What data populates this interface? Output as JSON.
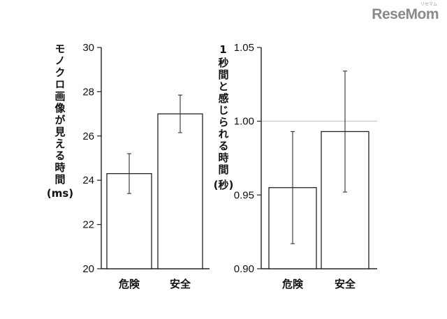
{
  "logo": {
    "text": "ReseMom",
    "mark": "リセマム"
  },
  "chart_data": [
    {
      "type": "bar",
      "categories": [
        "危険",
        "安全"
      ],
      "values": [
        24.3,
        27.0
      ],
      "errors": [
        0.9,
        0.85
      ],
      "ylabel": "モノクロ画像が見える時間",
      "yunit": "(ms)",
      "ylim": [
        20,
        30
      ],
      "yticks": [
        "20",
        "22",
        "24",
        "26",
        "28",
        "30"
      ],
      "ytick_values": [
        20,
        22,
        24,
        26,
        28,
        30
      ],
      "reference_line": null
    },
    {
      "type": "bar",
      "categories": [
        "危険",
        "安全"
      ],
      "values": [
        0.955,
        0.993
      ],
      "errors": [
        0.038,
        0.041
      ],
      "ylabel": "1秒間と感じられる時間",
      "yunit": "(秒)",
      "ylim": [
        0.9,
        1.05
      ],
      "yticks": [
        "0.90",
        "0.95",
        "1.00",
        "1.05"
      ],
      "ytick_values": [
        0.9,
        0.95,
        1.0,
        1.05
      ],
      "reference_line": 1.0
    }
  ],
  "colors": {
    "axis": "#222222",
    "bar_fill": "#ffffff",
    "bar_stroke": "#222222",
    "error": "#333333",
    "reference": "#bdbdbd",
    "text": "#111111"
  }
}
